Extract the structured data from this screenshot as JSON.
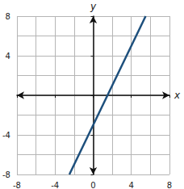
{
  "chart_data": {
    "type": "line",
    "x_label": "x",
    "y_label": "y",
    "x": [
      -2.5,
      5.5
    ],
    "values": [
      -8,
      8
    ],
    "color": "#1d4f7c",
    "xlim": [
      -8,
      8
    ],
    "ylim": [
      -8,
      8
    ],
    "xticks": [
      -8,
      -4,
      0,
      4,
      8
    ],
    "yticks": [
      -8,
      -4,
      4,
      8
    ],
    "grid": true
  }
}
